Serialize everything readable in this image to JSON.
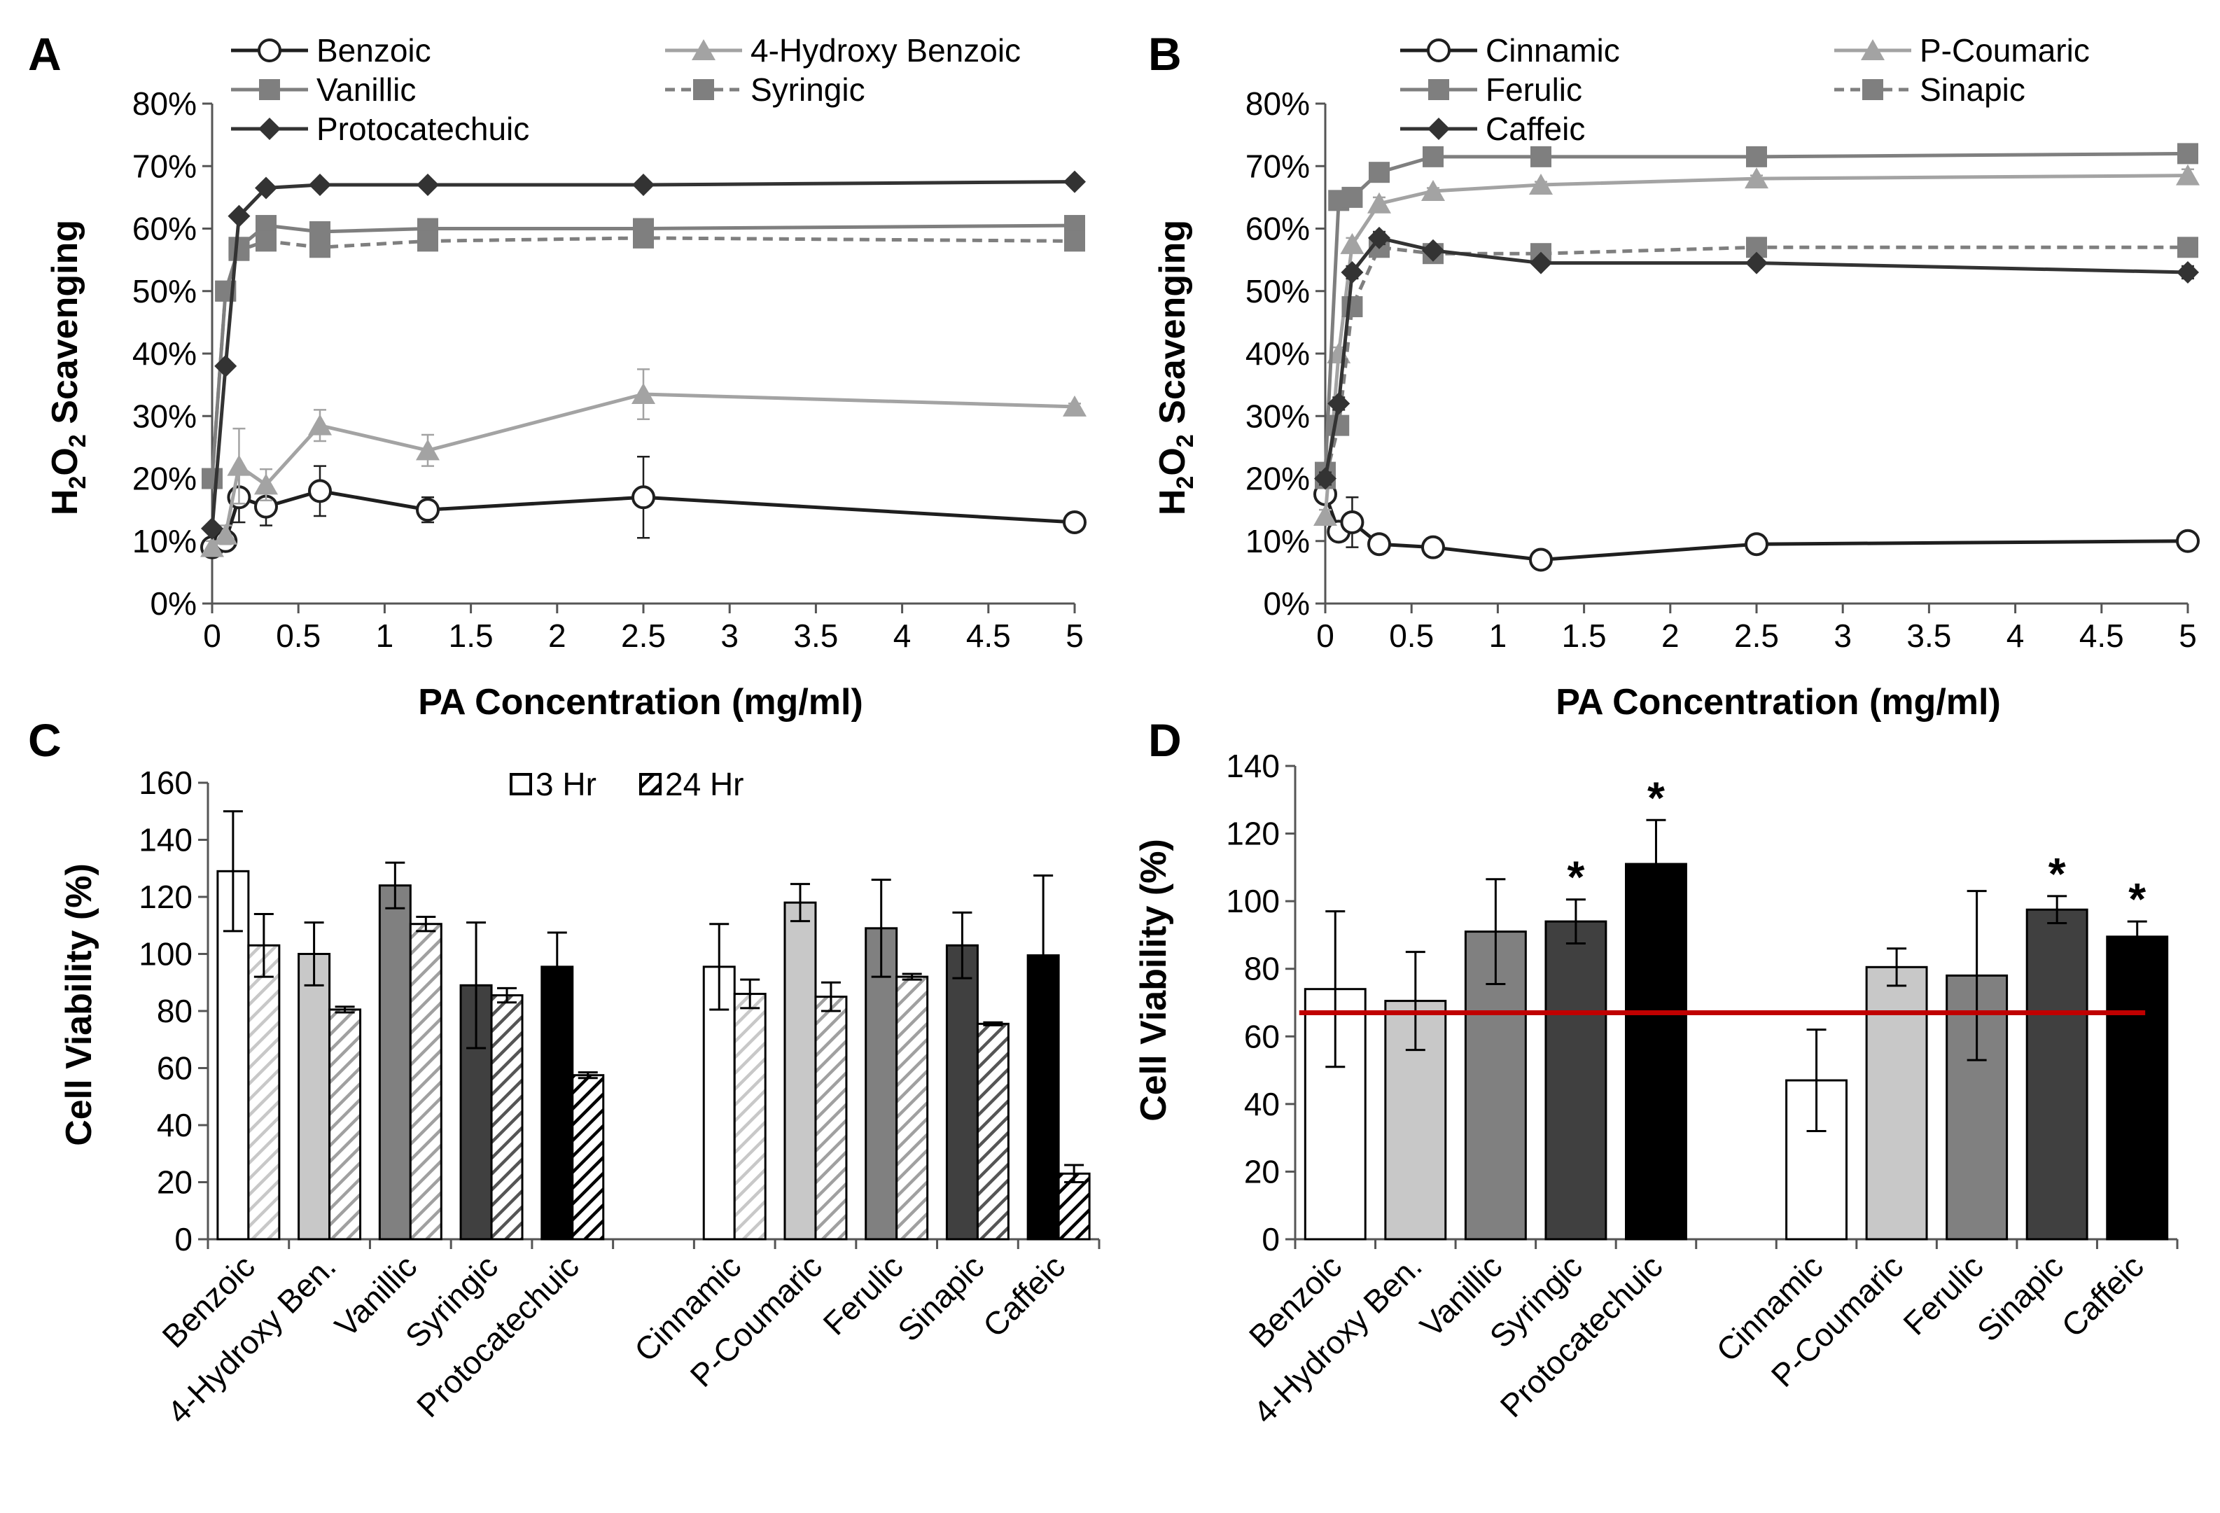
{
  "figure": {
    "panel_letters": [
      "A",
      "B",
      "C",
      "D"
    ]
  },
  "colors": {
    "line_black": "#1f1f1f",
    "line_light_gray": "#a3a3a3",
    "line_mid_gray": "#7f7f7f",
    "line_dark": "#333333",
    "bar_white": "#ffffff",
    "bar_light": "#c8c8c8",
    "bar_mid": "#808080",
    "bar_dark": "#404040",
    "bar_black": "#000000",
    "threshold_red": "#c00000"
  },
  "chart_data": [
    {
      "panel": "A",
      "type": "line",
      "xlabel": "PA Concentration (mg/ml)",
      "ylabel_main": "H",
      "ylabel_sub1": "2",
      "ylabel_mid": "O",
      "ylabel_sub2": "2",
      "ylabel_rest": " Scavenging",
      "xlim": [
        0,
        5
      ],
      "ylim": [
        0,
        80
      ],
      "xticks": [
        "0",
        "0.5",
        "1",
        "1.5",
        "2",
        "2.5",
        "3",
        "3.5",
        "4",
        "4.5",
        "5"
      ],
      "yticks": [
        "0%",
        "10%",
        "20%",
        "30%",
        "40%",
        "50%",
        "60%",
        "70%",
        "80%"
      ],
      "x": [
        0,
        0.078,
        0.156,
        0.3125,
        0.625,
        1.25,
        2.5,
        5
      ],
      "series": [
        {
          "name": "Benzoic",
          "marker": "circle",
          "dash": false,
          "color": "#1f1f1f",
          "values": [
            9,
            10,
            17,
            15.5,
            18,
            15,
            17,
            13
          ],
          "errors": [
            1,
            1,
            4,
            3,
            4,
            2,
            6.5,
            0.5
          ]
        },
        {
          "name": "4-Hydroxy Benzoic",
          "marker": "triangle",
          "dash": false,
          "color": "#a3a3a3",
          "values": [
            9,
            11,
            22,
            19,
            28.5,
            24.5,
            33.5,
            31.5
          ],
          "errors": [
            1,
            1.5,
            6,
            2.5,
            2.5,
            2.5,
            4,
            0.5
          ]
        },
        {
          "name": "Vanillic",
          "marker": "square",
          "dash": false,
          "color": "#7f7f7f",
          "values": [
            20,
            50,
            57,
            60.5,
            59.5,
            60,
            60,
            60.5
          ],
          "errors": [
            0.5,
            0.5,
            1.5,
            1,
            1,
            0.5,
            1.5,
            0.5
          ]
        },
        {
          "name": "Syringic",
          "marker": "square",
          "dash": true,
          "color": "#7f7f7f",
          "values": [
            20,
            50,
            56.5,
            58,
            57,
            58,
            58.5,
            58
          ],
          "errors": [
            0.5,
            0.5,
            1.5,
            1,
            1,
            0.5,
            1,
            0.5
          ]
        },
        {
          "name": "Protocatechuic",
          "marker": "diamond",
          "dash": false,
          "color": "#333333",
          "values": [
            12,
            38,
            62,
            66.5,
            67,
            67,
            67,
            67.5
          ],
          "errors": [
            0.5,
            0.5,
            0.5,
            0.5,
            0.5,
            0.5,
            0.5,
            0.5
          ]
        }
      ]
    },
    {
      "panel": "B",
      "type": "line",
      "xlabel": "PA Concentration (mg/ml)",
      "ylabel_main": "H",
      "ylabel_sub1": "2",
      "ylabel_mid": "O",
      "ylabel_sub2": "2",
      "ylabel_rest": " Scavenging",
      "xlim": [
        0,
        5
      ],
      "ylim": [
        0,
        80
      ],
      "xticks": [
        "0",
        "0.5",
        "1",
        "1.5",
        "2",
        "2.5",
        "3",
        "3.5",
        "4",
        "4.5",
        "5"
      ],
      "yticks": [
        "0%",
        "10%",
        "20%",
        "30%",
        "40%",
        "50%",
        "60%",
        "70%",
        "80%"
      ],
      "x": [
        0,
        0.078,
        0.156,
        0.3125,
        0.625,
        1.25,
        2.5,
        5
      ],
      "series": [
        {
          "name": "Cinnamic",
          "marker": "circle",
          "dash": false,
          "color": "#1f1f1f",
          "values": [
            17.5,
            11.5,
            13,
            9.5,
            9,
            7,
            9.5,
            10
          ],
          "errors": [
            1,
            1.5,
            4,
            1,
            0.5,
            0.5,
            0.5,
            1
          ]
        },
        {
          "name": "P-Coumaric",
          "marker": "triangle",
          "dash": false,
          "color": "#a3a3a3",
          "values": [
            14,
            40,
            57.5,
            64,
            66,
            67,
            68,
            68.5
          ],
          "errors": [
            1,
            1,
            1,
            1,
            0.5,
            0.5,
            0.5,
            1
          ]
        },
        {
          "name": "Ferulic",
          "marker": "square",
          "dash": false,
          "color": "#7f7f7f",
          "values": [
            21,
            64.5,
            65,
            69,
            71.5,
            71.5,
            71.5,
            72
          ],
          "errors": [
            0.5,
            0.5,
            0.5,
            0.5,
            0.5,
            0.5,
            0.5,
            0.5
          ]
        },
        {
          "name": "Sinapic",
          "marker": "square",
          "dash": true,
          "color": "#7f7f7f",
          "values": [
            20,
            28.5,
            47.5,
            57,
            56,
            56,
            57,
            57
          ],
          "errors": [
            1,
            1,
            1.5,
            1,
            0.5,
            0.5,
            0.5,
            0.5
          ]
        },
        {
          "name": "Caffeic",
          "marker": "diamond",
          "dash": false,
          "color": "#333333",
          "values": [
            20,
            32,
            53,
            58.5,
            56.5,
            54.5,
            54.5,
            53
          ],
          "errors": [
            1,
            1,
            1,
            1,
            0.5,
            0.5,
            0.5,
            1
          ]
        }
      ]
    },
    {
      "panel": "C",
      "type": "bar",
      "ylabel": "Cell Viability (%)",
      "ylim": [
        0,
        160
      ],
      "yticks": [
        "0",
        "20",
        "40",
        "60",
        "80",
        "100",
        "120",
        "140",
        "160"
      ],
      "categories": [
        "Benzoic",
        "4-Hydroxy Ben.",
        "Vanillic",
        "Syringic",
        "Protocatechuic",
        "Cinnamic",
        "P-Coumaric",
        "Ferulic",
        "Sinapic",
        "Caffeic"
      ],
      "bar_colors": [
        "#ffffff",
        "#c8c8c8",
        "#808080",
        "#404040",
        "#000000",
        "#ffffff",
        "#c8c8c8",
        "#808080",
        "#404040",
        "#000000"
      ],
      "series": [
        {
          "name": "3 Hr",
          "pattern": "solid",
          "values": [
            129,
            100,
            124,
            89,
            95.5,
            95.5,
            118,
            109,
            103,
            99.5
          ],
          "errors": [
            21,
            11,
            8,
            22,
            12,
            15,
            6.5,
            17,
            11.5,
            28
          ]
        },
        {
          "name": "24 Hr",
          "pattern": "hatched",
          "values": [
            103,
            80.5,
            110.5,
            85.5,
            57.5,
            86,
            85,
            92,
            75.5,
            23
          ],
          "errors": [
            11,
            1,
            2.5,
            2.5,
            1,
            5,
            5,
            1,
            0.5,
            3
          ]
        }
      ]
    },
    {
      "panel": "D",
      "type": "bar",
      "ylabel": "Cell Viability (%)",
      "ylim": [
        0,
        140
      ],
      "yticks": [
        "0",
        "20",
        "40",
        "60",
        "80",
        "100",
        "120",
        "140"
      ],
      "categories": [
        "Benzoic",
        "4-Hydroxy Ben.",
        "Vanillic",
        "Syringic",
        "Protocatechuic",
        "Cinnamic",
        "P-Coumaric",
        "Ferulic",
        "Sinapic",
        "Caffeic"
      ],
      "bar_colors": [
        "#ffffff",
        "#c8c8c8",
        "#808080",
        "#404040",
        "#000000",
        "#ffffff",
        "#c8c8c8",
        "#808080",
        "#404040",
        "#000000"
      ],
      "values": [
        74,
        70.5,
        91,
        94,
        111,
        47,
        80.5,
        78,
        97.5,
        89.5
      ],
      "errors": [
        23,
        14.5,
        15.5,
        6.5,
        13,
        15,
        5.5,
        25,
        4,
        4.5
      ],
      "significance": [
        "",
        "",
        "",
        "*",
        "*",
        "",
        "",
        "",
        "*",
        "*"
      ],
      "threshold": 67
    }
  ]
}
